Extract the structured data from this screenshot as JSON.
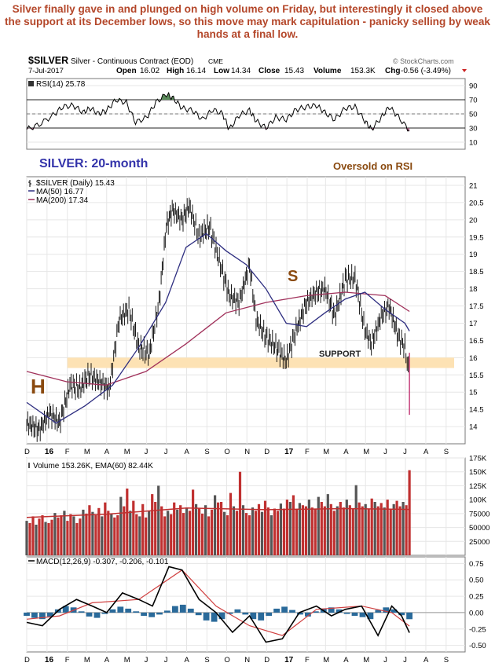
{
  "caption": "Silver finally gave in and plunged on high volume on Friday, but interestingly it closed above the support at its December lows, so this move may mark capitulation - panicky selling by weak hands at a final low.",
  "header": {
    "symbol": "$SILVER",
    "description": "Silver - Continuous Contract (EOD)",
    "exchange": "CME",
    "date": "7-Jul-2017",
    "open_label": "Open",
    "open": "16.02",
    "high_label": "High",
    "high": "16.14",
    "low_label": "Low",
    "low": "14.34",
    "close_label": "Close",
    "close": "15.43",
    "volume_label": "Volume",
    "volume": "153.3K",
    "chg_label": "Chg",
    "chg": "-0.56 (-3.49%)",
    "watermark": "© StockCharts.com"
  },
  "annotations": {
    "title": "SILVER: 20-month",
    "oversold": "Oversold on RSI",
    "support": "SUPPORT",
    "h": "H",
    "s": "S"
  },
  "colors": {
    "caption": "#b4472a",
    "title": "#3333aa",
    "annotation": "#8a4a10",
    "support_band": "#fde2b4",
    "ma50": "#2e2e80",
    "ma200": "#a0305a",
    "volume_up": "#555555",
    "volume_down": "#c03030",
    "ema": "#c03030",
    "macd": "#000000",
    "signal": "#d04040",
    "histogram": "#2a6a9a",
    "rsi_fill": "#5a8a5a"
  },
  "chart_data": [
    {
      "type": "line",
      "panel": "rsi",
      "legend": "RSI(14) 25.78",
      "ylim": [
        0,
        100
      ],
      "yticks": [
        10,
        30,
        50,
        70,
        90
      ],
      "reference_lines": [
        30,
        70
      ],
      "x_start": "2015-12-01",
      "x_end": "2017-09-30",
      "series": [
        {
          "name": "RSI(14)",
          "x": [
            "2015-12-01",
            "2015-12-20",
            "2016-01-10",
            "2016-01-25",
            "2016-02-10",
            "2016-02-25",
            "2016-03-07",
            "2016-03-20",
            "2016-04-01",
            "2016-04-15",
            "2016-05-01",
            "2016-05-15",
            "2016-06-01",
            "2016-06-15",
            "2016-07-01",
            "2016-07-12",
            "2016-07-25",
            "2016-08-10",
            "2016-08-25",
            "2016-09-10",
            "2016-09-25",
            "2016-10-05",
            "2016-10-20",
            "2016-11-05",
            "2016-11-15",
            "2016-11-30",
            "2016-12-15",
            "2016-12-31",
            "2017-01-15",
            "2017-01-31",
            "2017-02-15",
            "2017-02-28",
            "2017-03-15",
            "2017-03-31",
            "2017-04-15",
            "2017-04-30",
            "2017-05-10",
            "2017-05-25",
            "2017-06-06",
            "2017-06-20",
            "2017-07-07"
          ],
          "values": [
            28,
            35,
            48,
            60,
            62,
            52,
            58,
            50,
            55,
            70,
            66,
            38,
            45,
            66,
            78,
            72,
            58,
            55,
            42,
            56,
            50,
            28,
            48,
            55,
            40,
            30,
            45,
            42,
            56,
            60,
            62,
            52,
            42,
            58,
            60,
            40,
            28,
            45,
            60,
            46,
            26
          ]
        }
      ]
    },
    {
      "type": "line",
      "panel": "price",
      "legend": [
        "$SILVER (Daily) 15.43",
        "MA(50) 16.77",
        "MA(200) 17.34"
      ],
      "ylim": [
        13.5,
        21.25
      ],
      "yticks": [
        14.0,
        14.5,
        15.0,
        15.5,
        16.0,
        16.5,
        17.0,
        17.5,
        18.0,
        18.5,
        19.0,
        19.5,
        20.0,
        20.5,
        21.0
      ],
      "xticks": [
        "D",
        "16",
        "F",
        "M",
        "A",
        "M",
        "J",
        "J",
        "A",
        "S",
        "O",
        "N",
        "D",
        "17",
        "F",
        "M",
        "A",
        "M",
        "J",
        "J",
        "A",
        "S"
      ],
      "support_band": [
        15.7,
        16.0
      ],
      "series": [
        {
          "name": "$SILVER (Daily)",
          "x": [
            "2015-12-01",
            "2015-12-20",
            "2016-01-05",
            "2016-01-20",
            "2016-02-05",
            "2016-02-20",
            "2016-03-05",
            "2016-03-20",
            "2016-04-05",
            "2016-04-20",
            "2016-05-05",
            "2016-05-20",
            "2016-06-05",
            "2016-06-20",
            "2016-07-01",
            "2016-07-10",
            "2016-07-25",
            "2016-08-05",
            "2016-08-20",
            "2016-09-05",
            "2016-09-20",
            "2016-10-05",
            "2016-10-20",
            "2016-11-05",
            "2016-11-15",
            "2016-11-30",
            "2016-12-15",
            "2016-12-31",
            "2017-01-15",
            "2017-01-31",
            "2017-02-15",
            "2017-02-28",
            "2017-03-15",
            "2017-03-31",
            "2017-04-15",
            "2017-04-30",
            "2017-05-10",
            "2017-05-25",
            "2017-06-06",
            "2017-06-20",
            "2017-06-30",
            "2017-07-07"
          ],
          "values": [
            14.1,
            13.9,
            14.4,
            14.1,
            15.2,
            15.1,
            15.5,
            15.3,
            15.1,
            17.1,
            17.4,
            16.3,
            16.1,
            17.6,
            19.8,
            20.3,
            20.0,
            20.4,
            19.5,
            19.8,
            18.8,
            17.8,
            17.6,
            18.7,
            17.1,
            16.6,
            16.3,
            15.9,
            16.8,
            17.6,
            17.9,
            18.0,
            17.2,
            18.3,
            18.3,
            16.8,
            16.4,
            17.2,
            17.5,
            16.6,
            16.3,
            15.43
          ]
        },
        {
          "name": "MA(50)",
          "x": [
            "2015-12-01",
            "2016-01-15",
            "2016-02-28",
            "2016-04-10",
            "2016-05-20",
            "2016-06-30",
            "2016-07-31",
            "2016-08-31",
            "2016-09-30",
            "2016-10-31",
            "2016-11-30",
            "2016-12-31",
            "2017-01-31",
            "2017-02-28",
            "2017-03-31",
            "2017-04-30",
            "2017-05-31",
            "2017-06-30",
            "2017-07-07"
          ],
          "values": [
            14.7,
            14.1,
            14.6,
            15.2,
            16.3,
            17.6,
            19.2,
            19.6,
            19.1,
            18.7,
            18.0,
            17.0,
            16.9,
            17.3,
            17.7,
            17.9,
            17.4,
            17.0,
            16.77
          ]
        },
        {
          "name": "MA(200)",
          "x": [
            "2015-12-01",
            "2016-01-31",
            "2016-03-31",
            "2016-05-31",
            "2016-07-31",
            "2016-09-30",
            "2016-11-30",
            "2017-01-31",
            "2017-03-31",
            "2017-05-31",
            "2017-07-07"
          ],
          "values": [
            15.6,
            15.3,
            15.2,
            15.6,
            16.4,
            17.3,
            17.6,
            17.8,
            17.9,
            17.8,
            17.34
          ]
        }
      ]
    },
    {
      "type": "bar",
      "panel": "volume",
      "legend": "Volume 153.26K, EMA(60) 82.44K",
      "ylim": [
        0,
        175000
      ],
      "yticks": [
        25000,
        50000,
        75000,
        100000,
        125000,
        150000,
        175000
      ],
      "ytick_labels": [
        "25000",
        "50000",
        "75000",
        "100K",
        "125K",
        "150K",
        "175K"
      ],
      "series": [
        {
          "name": "Volume",
          "x_start": "2015-12-01",
          "x_end": "2017-07-07",
          "values": [
            62,
            58,
            70,
            55,
            66,
            72,
            60,
            58,
            64,
            76,
            68,
            72,
            80,
            62,
            74,
            70,
            58,
            66,
            82,
            75,
            90,
            78,
            72,
            85,
            70,
            95,
            80,
            75,
            68,
            72,
            105,
            88,
            120,
            80,
            98,
            74,
            70,
            92,
            68,
            80,
            110,
            96,
            125,
            88,
            70,
            80,
            74,
            95,
            82,
            90,
            76,
            86,
            80,
            118,
            92,
            84,
            75,
            90,
            70,
            82,
            108,
            95,
            96,
            78,
            72,
            112,
            88,
            80,
            150,
            90,
            76,
            72,
            86,
            80,
            92,
            78,
            98,
            86,
            72,
            84,
            80,
            93,
            84,
            100,
            96,
            108,
            82,
            94,
            90,
            88,
            100,
            86,
            84,
            105,
            96,
            88,
            110,
            92,
            80,
            88,
            96,
            86,
            100,
            90,
            84,
            126,
            95,
            88,
            92,
            84,
            102,
            96,
            88,
            94,
            86,
            100,
            84,
            92,
            98,
            88,
            96,
            90,
            153
          ]
        },
        {
          "name": "EMA(60)",
          "x": [
            "2015-12-01",
            "2016-04-01",
            "2016-08-01",
            "2016-12-01",
            "2017-04-01",
            "2017-07-07"
          ],
          "values": [
            68000,
            74000,
            85000,
            82000,
            84000,
            82440
          ]
        }
      ]
    },
    {
      "type": "line",
      "panel": "macd",
      "legend": "MACD(12,26,9) -0.307, -0.206, -0.101",
      "ylim": [
        -0.6,
        0.85
      ],
      "yticks": [
        -0.5,
        -0.25,
        0.0,
        0.25,
        0.5,
        0.75
      ],
      "ytick_labels": [
        "-0.50",
        "-0.25",
        "0.00",
        "0.25",
        "0.50",
        "0.75"
      ],
      "series": [
        {
          "name": "MACD",
          "x": [
            "2015-12-01",
            "2015-12-25",
            "2016-01-20",
            "2016-02-15",
            "2016-03-10",
            "2016-04-01",
            "2016-04-25",
            "2016-05-20",
            "2016-06-10",
            "2016-07-05",
            "2016-07-25",
            "2016-08-20",
            "2016-09-15",
            "2016-10-10",
            "2016-11-05",
            "2016-11-30",
            "2016-12-25",
            "2017-01-20",
            "2017-02-15",
            "2017-03-10",
            "2017-03-31",
            "2017-04-25",
            "2017-05-20",
            "2017-06-10",
            "2017-06-25",
            "2017-07-07"
          ],
          "values": [
            -0.15,
            -0.2,
            0.05,
            0.2,
            0.1,
            0.0,
            0.3,
            0.2,
            0.1,
            0.7,
            0.65,
            0.2,
            0.0,
            -0.3,
            -0.05,
            -0.45,
            -0.4,
            0.0,
            0.1,
            -0.05,
            0.05,
            0.1,
            -0.35,
            0.1,
            -0.05,
            -0.307
          ]
        },
        {
          "name": "Signal",
          "x": [
            "2015-12-01",
            "2016-01-20",
            "2016-03-10",
            "2016-05-20",
            "2016-07-25",
            "2016-09-15",
            "2016-11-05",
            "2016-12-25",
            "2017-02-15",
            "2017-04-25",
            "2017-06-10",
            "2017-07-07"
          ],
          "values": [
            -0.1,
            -0.05,
            0.15,
            0.2,
            0.65,
            0.1,
            -0.2,
            -0.35,
            0.05,
            0.1,
            0.0,
            -0.206
          ]
        },
        {
          "name": "Histogram",
          "x_start": "2015-12-01",
          "x_end": "2017-07-07",
          "values": [
            -0.05,
            -0.08,
            -0.1,
            -0.06,
            0.05,
            0.1,
            0.08,
            0.02,
            -0.06,
            -0.08,
            -0.02,
            0.05,
            0.09,
            0.06,
            0.02,
            -0.05,
            -0.07,
            -0.03,
            0.03,
            0.1,
            0.12,
            0.06,
            -0.04,
            -0.12,
            -0.14,
            -0.1,
            -0.02,
            0.05,
            -0.03,
            -0.1,
            -0.12,
            -0.05,
            0.06,
            0.09,
            0.04,
            -0.03,
            -0.06,
            0.02,
            0.06,
            0.08,
            0.05,
            -0.02,
            -0.05,
            -0.07,
            -0.1,
            0.04,
            0.08,
            0.05,
            -0.04,
            -0.101
          ]
        }
      ]
    }
  ]
}
